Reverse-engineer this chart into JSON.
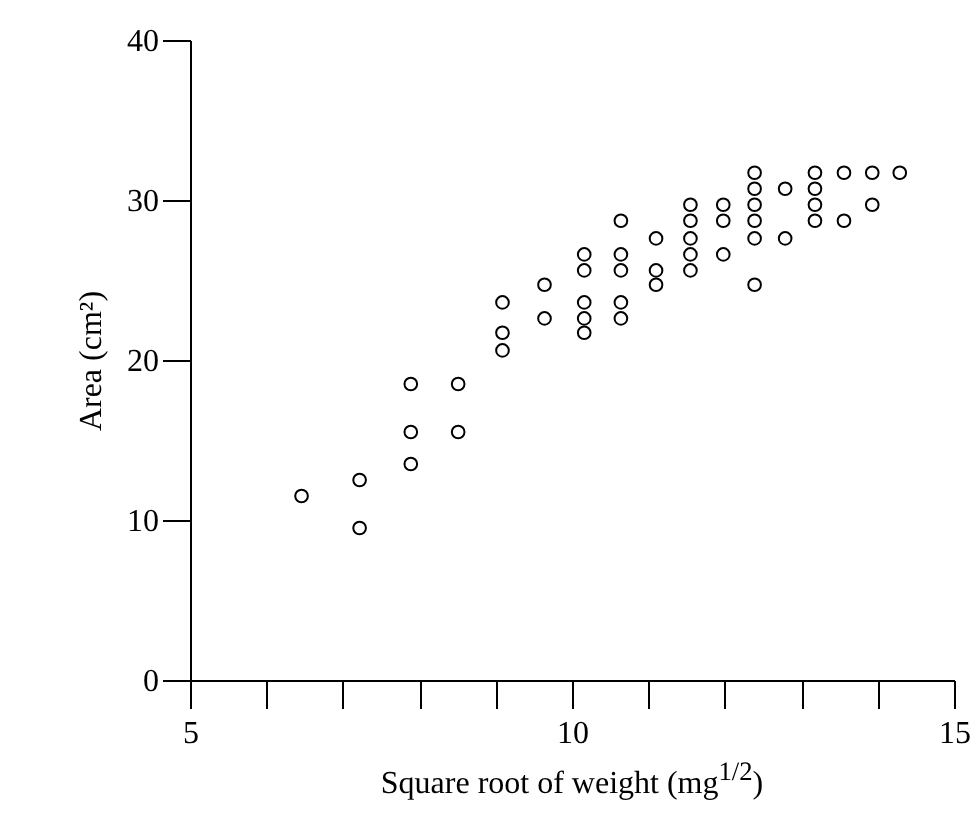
{
  "chart_data": {
    "type": "scatter",
    "xlabel": "Square root of weight (mg$^{1/2}$)",
    "ylabel": "Area (cm²)",
    "marker": "circle",
    "grid": false,
    "xlim": [
      5,
      15
    ],
    "ylim": [
      0,
      40
    ],
    "xticks": [
      5,
      {
        "value": 6,
        "label": null
      },
      {
        "value": 7,
        "label": null
      },
      {
        "value": 8,
        "label": null
      },
      {
        "value": 9,
        "label": null
      },
      10,
      {
        "value": 11,
        "label": null
      },
      {
        "value": 12,
        "label": null
      },
      {
        "value": 13,
        "label": null
      },
      {
        "value": 14,
        "label": null
      },
      15
    ],
    "yticks": [
      0,
      10,
      20,
      30,
      40
    ],
    "series": [
      {
        "color": "#000000",
        "x": [
          6.46,
          7.22,
          7.22,
          7.89,
          7.89,
          7.89,
          8.51,
          8.51,
          9.09,
          9.09,
          9.09,
          9.64,
          9.64,
          10.16,
          10.16,
          10.16,
          10.16,
          10.16,
          10.64,
          10.64,
          10.64,
          10.64,
          10.64,
          11.1,
          11.1,
          11.1,
          11.55,
          11.55,
          11.55,
          11.55,
          11.55,
          11.98,
          11.98,
          11.98,
          12.39,
          12.39,
          12.39,
          12.39,
          12.39,
          12.39,
          12.79,
          12.79,
          13.18,
          13.18,
          13.18,
          13.18,
          13.56,
          13.56,
          13.93,
          13.93,
          14.29
        ],
        "values": [
          11.5,
          12.5,
          9.5,
          18.5,
          15.5,
          13.5,
          18.5,
          15.5,
          23.6,
          21.7,
          20.6,
          24.7,
          22.6,
          26.6,
          25.6,
          23.6,
          22.6,
          21.7,
          28.7,
          26.6,
          25.6,
          23.6,
          22.6,
          27.6,
          25.6,
          24.7,
          29.7,
          28.7,
          27.6,
          26.6,
          25.6,
          29.7,
          28.7,
          26.6,
          31.7,
          30.7,
          29.7,
          28.7,
          27.6,
          24.7,
          30.7,
          27.6,
          31.7,
          30.7,
          29.7,
          28.7,
          31.7,
          28.7,
          31.7,
          29.7,
          31.7
        ]
      }
    ]
  }
}
